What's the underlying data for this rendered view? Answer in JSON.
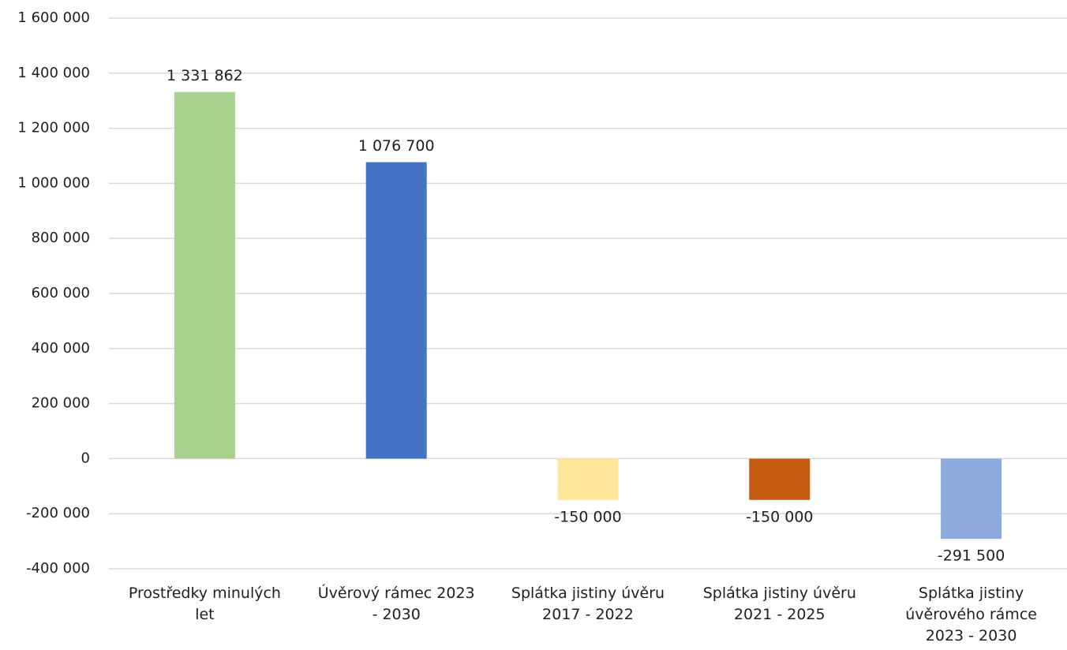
{
  "chart_data": {
    "type": "bar",
    "title": "",
    "xlabel": "",
    "ylabel": "",
    "ylim": [
      -400000,
      1600000
    ],
    "grid": true,
    "legend": "none",
    "y_ticks": [
      {
        "value": 1600000,
        "label": "1 600 000"
      },
      {
        "value": 1400000,
        "label": "1 400 000"
      },
      {
        "value": 1200000,
        "label": "1 200 000"
      },
      {
        "value": 1000000,
        "label": "1 000 000"
      },
      {
        "value": 800000,
        "label": "800 000"
      },
      {
        "value": 600000,
        "label": "600 000"
      },
      {
        "value": 400000,
        "label": "400 000"
      },
      {
        "value": 200000,
        "label": "200 000"
      },
      {
        "value": 0,
        "label": "0"
      },
      {
        "value": -200000,
        "label": "-200 000"
      },
      {
        "value": -400000,
        "label": "-400 000"
      }
    ],
    "categories": [
      [
        "Prostředky minulých",
        "let"
      ],
      [
        "Úvěrový rámec 2023",
        "- 2030"
      ],
      [
        "Splátka jistiny úvěru",
        "2017 - 2022"
      ],
      [
        "Splátka jistiny úvěru",
        "2021 - 2025"
      ],
      [
        "Splátka jistiny",
        "úvěrového rámce",
        "2023 - 2030"
      ]
    ],
    "values": [
      1331862,
      1076700,
      -150000,
      -150000,
      -291500
    ],
    "value_labels": [
      "1 331 862",
      "1 076 700",
      "-150 000",
      "-150 000",
      "-291 500"
    ],
    "colors": [
      "#a9d18e",
      "#4472c4",
      "#ffe699",
      "#c55a11",
      "#8faadc"
    ]
  }
}
